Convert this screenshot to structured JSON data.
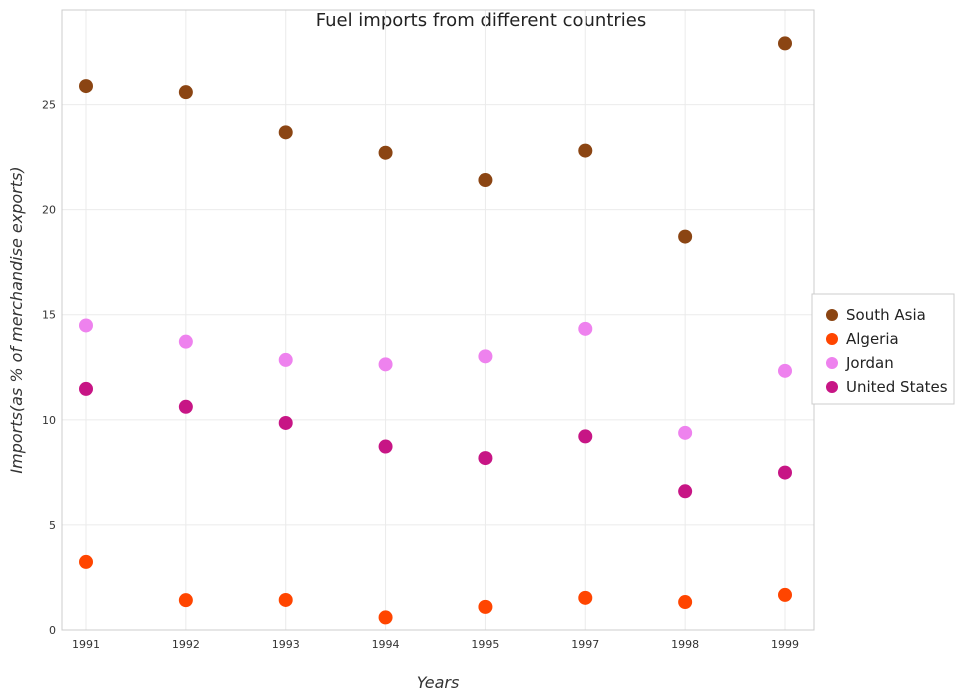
{
  "chart_data": {
    "type": "scatter",
    "title": "Fuel imports from different countries",
    "xlabel": "Years",
    "ylabel": "Imports(as % of merchandise exports)",
    "categories": [
      "1991",
      "1992",
      "1993",
      "1994",
      "1995",
      "1997",
      "1998",
      "1999"
    ],
    "yticks": [
      "0",
      "5",
      "10",
      "15",
      "20",
      "25"
    ],
    "ylim": [
      0,
      29.5
    ],
    "grid": true,
    "legend_position": "right",
    "series": [
      {
        "name": "South Asia",
        "color": "#8B4513",
        "values": [
          25.88,
          25.59,
          23.68,
          22.71,
          21.41,
          22.81,
          18.72,
          27.91
        ]
      },
      {
        "name": "Algeria",
        "color": "#FF4500",
        "values": [
          3.24,
          1.42,
          1.43,
          0.6,
          1.1,
          1.53,
          1.33,
          1.67
        ]
      },
      {
        "name": "Jordan",
        "color": "#EE82EE",
        "values": [
          14.49,
          13.72,
          12.85,
          12.64,
          13.02,
          14.33,
          9.38,
          12.33
        ]
      },
      {
        "name": "United States",
        "color": "#C71585",
        "values": [
          11.47,
          10.62,
          9.85,
          8.73,
          8.18,
          9.21,
          6.6,
          7.49
        ]
      }
    ]
  }
}
